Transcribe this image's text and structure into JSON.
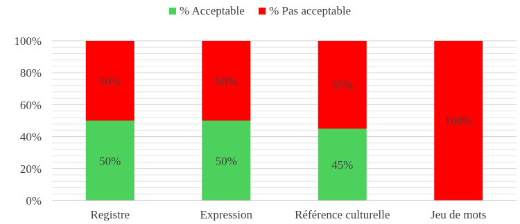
{
  "chart_data": {
    "type": "bar",
    "stacked": true,
    "categories": [
      "Registre",
      "Expression",
      "Référence culturelle",
      "Jeu de mots"
    ],
    "series": [
      {
        "name": "% Acceptable",
        "values": [
          50,
          50,
          45,
          0
        ],
        "labels": [
          "50%",
          "50%",
          "45%",
          ""
        ],
        "color": "#4cd15c"
      },
      {
        "name": "% Pas acceptable",
        "values": [
          50,
          50,
          55,
          100
        ],
        "labels": [
          "50%",
          "50%",
          "55%",
          "100%"
        ],
        "color": "#ff0000"
      }
    ],
    "ylim": [
      0,
      100
    ],
    "yticks": [
      "0%",
      "20%",
      "40%",
      "60%",
      "80%",
      "100%"
    ],
    "grid": true,
    "legend_position": "top-center",
    "title": "",
    "xlabel": "",
    "ylabel": ""
  }
}
